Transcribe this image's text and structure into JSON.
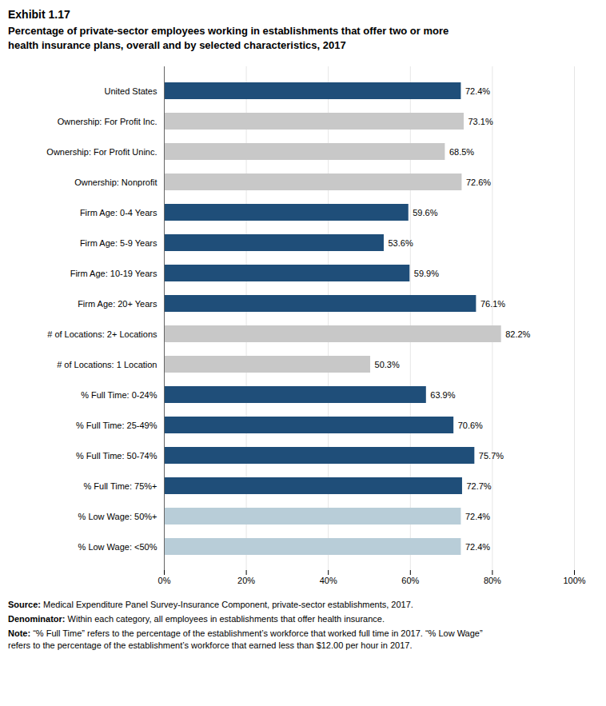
{
  "chart_data": {
    "type": "bar",
    "orientation": "horizontal",
    "title": "Exhibit 1.17",
    "subtitle": "Percentage of private-sector employees working in establishments that offer two or more\nhealth insurance plans, overall and by selected characteristics, 2017",
    "categories": [
      "% Low Wage: <50%",
      "% Low Wage: 50%+",
      "% Full Time: 75%+",
      "% Full Time: 50-74%",
      "% Full Time: 25-49%",
      "% Full Time: 0-24%",
      "# of Locations: 1 Location",
      "# of Locations: 2+ Locations",
      "Firm Age: 20+ Years",
      "Firm Age: 10-19 Years",
      "Firm Age: 5-9 Years",
      "Firm Age: 0-4 Years",
      "Ownership: Nonprofit",
      "Ownership: For Profit Uninc.",
      "Ownership: For Profit Inc.",
      "United States"
    ],
    "values": [
      72.4,
      72.4,
      72.7,
      75.7,
      70.6,
      63.9,
      50.3,
      82.2,
      76.1,
      59.9,
      53.6,
      59.6,
      72.6,
      68.5,
      73.1,
      72.4
    ],
    "value_labels": [
      "72.4%",
      "72.4%",
      "72.7%",
      "75.7%",
      "70.6%",
      "63.9%",
      "50.3%",
      "82.2%",
      "76.1%",
      "59.9%",
      "53.6%",
      "59.6%",
      "72.6%",
      "68.5%",
      "73.1%",
      "72.4%"
    ],
    "colors": [
      "#b8cdd8",
      "#b8cdd8",
      "#1f4e79",
      "#1f4e79",
      "#1f4e79",
      "#1f4e79",
      "#c8c8c8",
      "#c8c8c8",
      "#1f4e79",
      "#1f4e79",
      "#1f4e79",
      "#1f4e79",
      "#c8c8c8",
      "#c8c8c8",
      "#c8c8c8",
      "#1f4e79"
    ],
    "data_labels": true,
    "xlim": [
      0,
      100
    ],
    "xticks": [
      {
        "value": 0,
        "label": "0%"
      },
      {
        "value": 20,
        "label": "20%"
      },
      {
        "value": 40,
        "label": "40%"
      },
      {
        "value": 60,
        "label": "60%"
      },
      {
        "value": 80,
        "label": "80%"
      },
      {
        "value": 100,
        "label": "100%"
      }
    ],
    "grid": true,
    "annotations": [
      "Source: Medical Expenditure Panel Survey-Insurance Component, private-sector establishments, 2017.",
      "Denominator: Within each category, all employees in establishments that offer health insurance.",
      "Note: “% Full Time” refers to the percentage of the establishment’s workforce that worked full time in 2017. “% Low Wage”\nrefers to the percentage of the establishment’s workforce that earned less than $12.00 per hour in 2017."
    ]
  }
}
